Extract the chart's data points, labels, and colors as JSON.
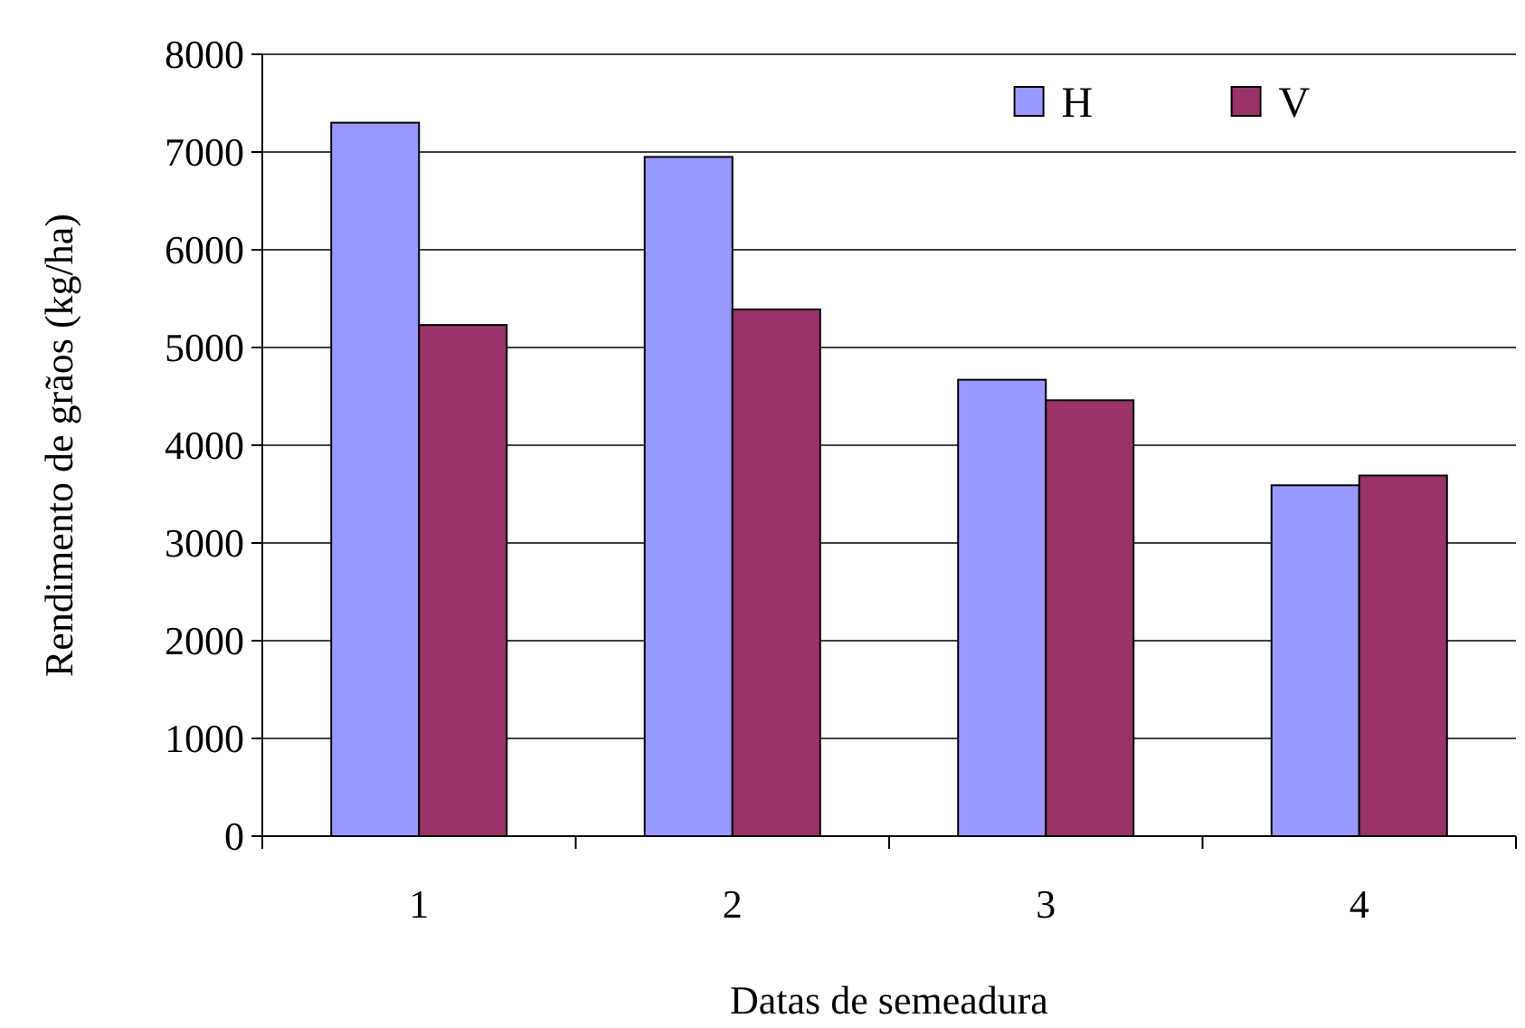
{
  "chart_data": {
    "type": "bar",
    "xlabel": "Datas de semeadura",
    "ylabel": "Rendimento de grãos (kg/ha)",
    "categories": [
      "1",
      "2",
      "3",
      "4"
    ],
    "series": [
      {
        "name": "H",
        "color": "#9999ff",
        "values": [
          7300,
          6950,
          4670,
          3590
        ]
      },
      {
        "name": "V",
        "color": "#993366",
        "values": [
          5230,
          5390,
          4460,
          3690
        ]
      }
    ],
    "ylim": [
      0,
      8000
    ],
    "yticks": [
      0,
      1000,
      2000,
      3000,
      4000,
      5000,
      6000,
      7000,
      8000
    ],
    "grid": "y",
    "legend": "top right"
  }
}
